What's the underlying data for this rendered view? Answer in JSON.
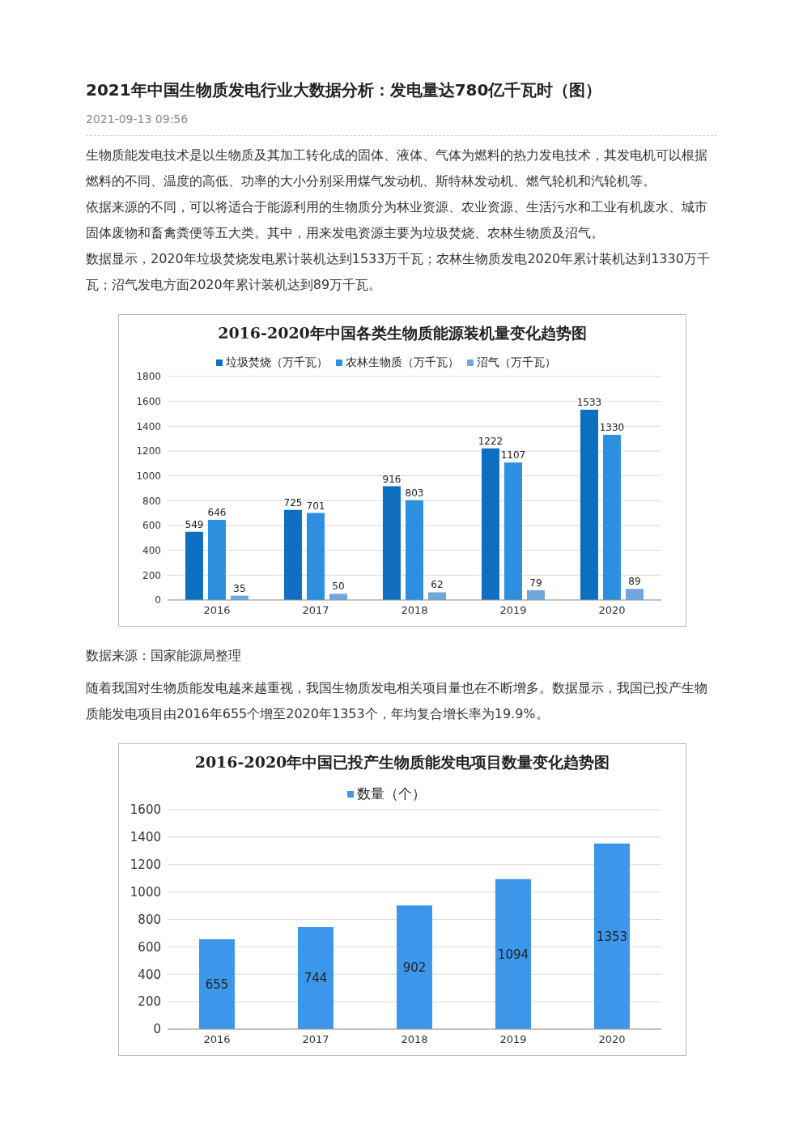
{
  "chart_data": [
    {
      "type": "bar",
      "title": "2016-2020年中国各类生物质能源装机量变化趋势图",
      "annotations": [
        "2021年中国生物质发电行业大数据分析：发电量达780亿千瓦时（图）",
        "2021-09-13 09:56",
        "生物质能发电技术是以生物质及其加工转化成的固体、液体、气体为燃料的热力发电技术，其发电机可以根据燃料的不同、温度的高低、功率的大小分别采用煤气发动机、斯特林发动机、燃气轮机和汽轮机等。",
        "依据来源的不同，可以将适合于能源利用的生物质分为林业资源、农业资源、生活污水和工业有机废水、城市固体废物和畜禽粪便等五大类。其中，用来发电资源主要为垃圾焚烧、农林生物质及沼气。",
        "数据显示，2020年垃圾焚烧发电累计装机达到1533万千瓦；农林生物质发电2020年累计装机达到1330万千瓦；沼气发电方面2020年累计装机达到89万千瓦。"
      ],
      "categories": [
        "2016",
        "2017",
        "2018",
        "2019",
        "2020"
      ],
      "series": [
        {
          "name": "垃圾焚烧（万千瓦）",
          "color": "#0e6fc0",
          "values": [
            549,
            725,
            916,
            1222,
            1533
          ]
        },
        {
          "name": "农林生物质（万千瓦）",
          "color": "#2d8fe0",
          "values": [
            646,
            701,
            803,
            1107,
            1330
          ]
        },
        {
          "name": "沼气（万千瓦）",
          "color": "#6fa6dc",
          "values": [
            35,
            50,
            62,
            79,
            89
          ]
        }
      ],
      "ylim": [
        0,
        1800
      ],
      "yticks": [
        0,
        200,
        400,
        600,
        800,
        1000,
        1200,
        1400,
        1600,
        1800
      ],
      "grid": "y",
      "legend": "top",
      "data_labels": true
    },
    {
      "type": "bar",
      "title": "2016-2020年中国已投产生物质能发电项目数量变化趋势图",
      "annotations": [
        "数据来源：国家能源局整理",
        "随着我国对生物质能发电越来越重视，我国生物质发电相关项目量也在不断增多。数据显示，我国已投产生物质能发电项目由2016年655个增至2020年1353个，年均复合增长率为19.9%。"
      ],
      "categories": [
        "2016",
        "2017",
        "2018",
        "2019",
        "2020"
      ],
      "series": [
        {
          "name": "数量（个）",
          "color": "#3c97ea",
          "values": [
            655,
            744,
            902,
            1094,
            1353
          ]
        }
      ],
      "ylim": [
        0,
        1600
      ],
      "yticks": [
        0,
        200,
        400,
        600,
        800,
        1000,
        1200,
        1400,
        1600
      ],
      "grid": "y",
      "legend": "top",
      "data_labels": true
    }
  ]
}
